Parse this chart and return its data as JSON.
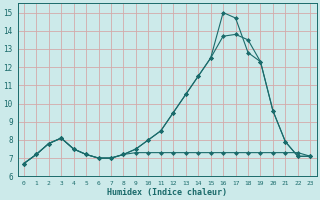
{
  "xlabel": "Humidex (Indice chaleur)",
  "bg_color": "#cceaea",
  "grid_color": "#d4aaaa",
  "line_color": "#1a6b6b",
  "xlim": [
    -0.5,
    23.5
  ],
  "ylim": [
    6.0,
    15.5
  ],
  "yticks": [
    6,
    7,
    8,
    9,
    10,
    11,
    12,
    13,
    14,
    15
  ],
  "xticks": [
    0,
    1,
    2,
    3,
    4,
    5,
    6,
    7,
    8,
    9,
    10,
    11,
    12,
    13,
    14,
    15,
    16,
    17,
    18,
    19,
    20,
    21,
    22,
    23
  ],
  "series1_x": [
    0,
    1,
    2,
    3,
    4,
    5,
    6,
    7,
    8,
    9,
    10,
    11,
    12,
    13,
    14,
    15,
    16,
    17,
    18,
    19,
    20,
    21,
    22,
    23
  ],
  "series1_y": [
    6.7,
    7.2,
    7.8,
    8.1,
    7.5,
    7.2,
    7.0,
    7.0,
    7.2,
    7.3,
    7.3,
    7.3,
    7.3,
    7.3,
    7.3,
    7.3,
    7.3,
    7.3,
    7.3,
    7.3,
    7.3,
    7.3,
    7.3,
    7.1
  ],
  "series2_x": [
    0,
    1,
    2,
    3,
    4,
    5,
    6,
    7,
    8,
    9,
    10,
    11,
    12,
    13,
    14,
    15,
    16,
    17,
    18,
    19,
    20,
    21,
    22,
    23
  ],
  "series2_y": [
    6.7,
    7.2,
    7.8,
    8.1,
    7.5,
    7.2,
    7.0,
    7.0,
    7.2,
    7.5,
    8.0,
    8.5,
    9.5,
    10.5,
    11.5,
    12.5,
    13.7,
    13.8,
    13.5,
    12.3,
    9.6,
    7.9,
    7.1,
    7.1
  ],
  "series3_x": [
    0,
    1,
    2,
    3,
    4,
    5,
    6,
    7,
    8,
    9,
    10,
    11,
    12,
    13,
    14,
    15,
    16,
    17,
    18,
    19,
    20,
    21,
    22,
    23
  ],
  "series3_y": [
    6.7,
    7.2,
    7.8,
    8.1,
    7.5,
    7.2,
    7.0,
    7.0,
    7.2,
    7.5,
    8.0,
    8.5,
    9.5,
    10.5,
    11.5,
    12.5,
    15.0,
    14.7,
    12.8,
    12.3,
    9.6,
    7.9,
    7.1,
    7.1
  ]
}
